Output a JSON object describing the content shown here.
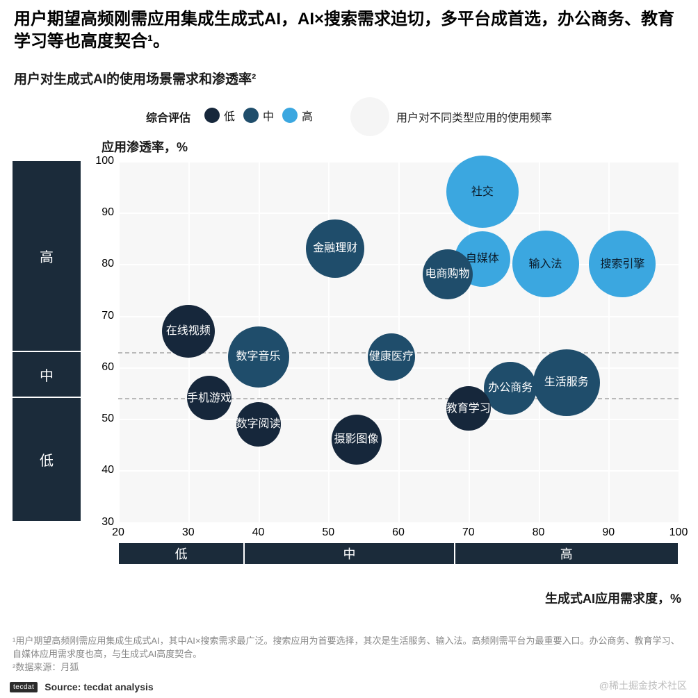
{
  "title": "用户期望高频刚需应用集成生成式AI，AI×搜索需求迫切，多平台成首选，办公商务、教育学习等也高度契合¹。",
  "subtitle": "用户对生成式AI的使用场景需求和渗透率²",
  "legend": {
    "title": "综合评估",
    "items": [
      {
        "label": "低",
        "color": "#16273b"
      },
      {
        "label": "中",
        "color": "#1f4d6b"
      },
      {
        "label": "高",
        "color": "#3ba7e0"
      }
    ],
    "freq_label": "用户对不同类型应用的使用频率",
    "freq_bubble_color": "#f0f0f0"
  },
  "chart": {
    "type": "bubble",
    "background_color": "#f7f7f7",
    "grid_color": "#ffffff",
    "band_line_color": "#b9b9b9",
    "y_title": "应用渗透率，%",
    "x_title": "生成式AI应用需求度，%",
    "xlim": [
      20,
      100
    ],
    "ylim": [
      30,
      100
    ],
    "xticks": [
      20,
      30,
      40,
      50,
      60,
      70,
      80,
      90,
      100
    ],
    "yticks": [
      30,
      40,
      50,
      60,
      70,
      80,
      90,
      100
    ],
    "y_bands": [
      {
        "label": "高",
        "from": 63,
        "to": 100
      },
      {
        "label": "中",
        "from": 54,
        "to": 63
      },
      {
        "label": "低",
        "from": 30,
        "to": 54
      }
    ],
    "x_bands": [
      {
        "label": "低",
        "from": 20,
        "to": 38
      },
      {
        "label": "中",
        "from": 38,
        "to": 68
      },
      {
        "label": "高",
        "from": 68,
        "to": 100
      }
    ],
    "y_band_dashes": [
      54,
      63
    ],
    "category_block_color": "#1b2b3a",
    "bubbles": [
      {
        "label": "社交",
        "x": 72,
        "y": 94,
        "r": 52,
        "color": "#3ba7e0",
        "text": "dark"
      },
      {
        "label": "金融理财",
        "x": 51,
        "y": 83,
        "r": 42,
        "color": "#1f4d6b",
        "text": "light"
      },
      {
        "label": "自媒体",
        "x": 72,
        "y": 81,
        "r": 40,
        "color": "#3ba7e0",
        "text": "dark"
      },
      {
        "label": "输入法",
        "x": 81,
        "y": 80,
        "r": 48,
        "color": "#3ba7e0",
        "text": "dark"
      },
      {
        "label": "搜索引擎",
        "x": 92,
        "y": 80,
        "r": 48,
        "color": "#3ba7e0",
        "text": "dark"
      },
      {
        "label": "电商购物",
        "x": 67,
        "y": 78,
        "r": 36,
        "color": "#1f4d6b",
        "text": "light"
      },
      {
        "label": "在线视频",
        "x": 30,
        "y": 67,
        "r": 38,
        "color": "#16273b",
        "text": "light"
      },
      {
        "label": "数字音乐",
        "x": 40,
        "y": 62,
        "r": 44,
        "color": "#1f4d6b",
        "text": "light"
      },
      {
        "label": "健康医疗",
        "x": 59,
        "y": 62,
        "r": 34,
        "color": "#1f4d6b",
        "text": "light"
      },
      {
        "label": "生活服务",
        "x": 84,
        "y": 57,
        "r": 48,
        "color": "#1f4d6b",
        "text": "light"
      },
      {
        "label": "办公商务",
        "x": 76,
        "y": 56,
        "r": 38,
        "color": "#1f4d6b",
        "text": "light"
      },
      {
        "label": "手机游戏",
        "x": 33,
        "y": 54,
        "r": 32,
        "color": "#16273b",
        "text": "light"
      },
      {
        "label": "教育学习",
        "x": 70,
        "y": 52,
        "r": 32,
        "color": "#16273b",
        "text": "light"
      },
      {
        "label": "数字阅读",
        "x": 40,
        "y": 49,
        "r": 32,
        "color": "#16273b",
        "text": "light"
      },
      {
        "label": "摄影图像",
        "x": 54,
        "y": 46,
        "r": 36,
        "color": "#16273b",
        "text": "light"
      }
    ]
  },
  "footnote1": "¹用户期望高频刚需应用集成生成式AI，其中AI×搜索需求最广泛。搜索应用为首要选择，其次是生活服务、输入法。高频刚需平台为最重要入口。办公商务、教育学习、自媒体应用需求度也高，与生成式AI高度契合。",
  "footnote2": "²数据来源：月狐",
  "source_badge": "tecdat",
  "source_text": "Source: tecdat analysis",
  "watermark": "@稀土掘金技术社区"
}
